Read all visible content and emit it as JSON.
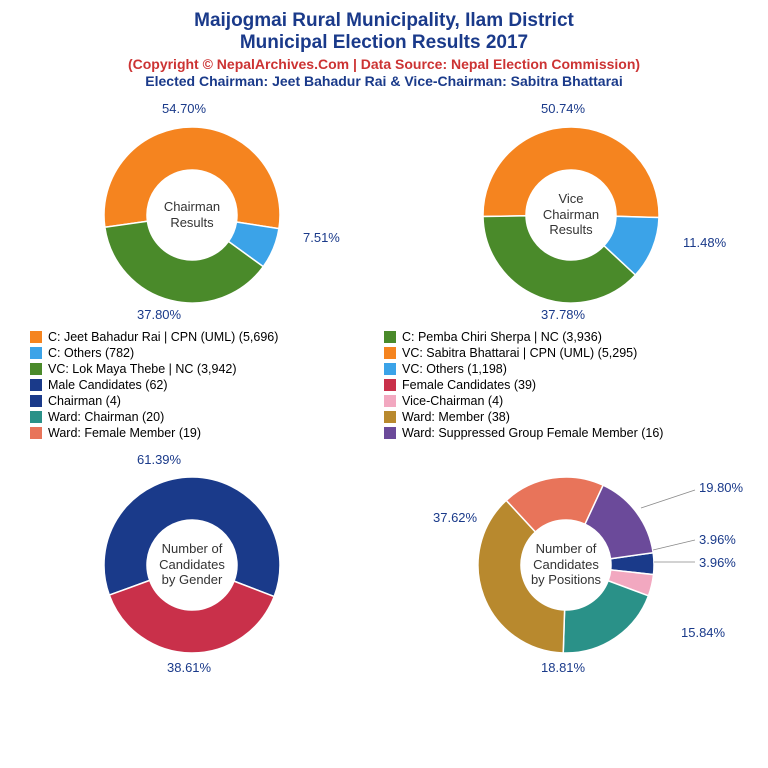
{
  "title": {
    "line1": "Maijogmai Rural Municipality, Ilam District",
    "line2": "Municipal Election Results 2017",
    "color": "#1a3a8a",
    "fontsize": 19
  },
  "subtitle": {
    "text": "(Copyright © NepalArchives.Com | Data Source: Nepal Election Commission)",
    "color": "#cc3333",
    "fontsize": 14
  },
  "elected": {
    "text": "Elected Chairman: Jeet Bahadur Rai & Vice-Chairman: Sabitra Bhattarai",
    "color": "#1a3a8a",
    "fontsize": 14
  },
  "label_color": "#1a3a8a",
  "charts": {
    "chairman": {
      "type": "donut",
      "center_label": "Chairman\nResults",
      "inner_radius": 45,
      "outer_radius": 88,
      "slices": [
        {
          "label": "54.70%",
          "value": 54.7,
          "color": "#f5841f"
        },
        {
          "label": "7.51%",
          "value": 7.51,
          "color": "#3ba3e8"
        },
        {
          "label": "37.80%",
          "value": 37.8,
          "color": "#4a8a2a"
        }
      ]
    },
    "vice_chairman": {
      "type": "donut",
      "center_label": "Vice\nChairman\nResults",
      "inner_radius": 45,
      "outer_radius": 88,
      "slices": [
        {
          "label": "50.74%",
          "value": 50.74,
          "color": "#f5841f"
        },
        {
          "label": "11.48%",
          "value": 11.48,
          "color": "#3ba3e8"
        },
        {
          "label": "37.78%",
          "value": 37.78,
          "color": "#4a8a2a"
        }
      ]
    },
    "gender": {
      "type": "donut",
      "center_label": "Number of\nCandidates\nby Gender",
      "inner_radius": 45,
      "outer_radius": 88,
      "slices": [
        {
          "label": "61.39%",
          "value": 61.39,
          "color": "#1a3a8a"
        },
        {
          "label": "38.61%",
          "value": 38.61,
          "color": "#c9304a"
        }
      ]
    },
    "positions": {
      "type": "donut",
      "center_label": "Number of\nCandidates\nby Positions",
      "inner_radius": 45,
      "outer_radius": 88,
      "slices": [
        {
          "label": "3.96%",
          "value": 3.96,
          "color": "#1a3a8a"
        },
        {
          "label": "3.96%",
          "value": 3.96,
          "color": "#f2a8c0"
        },
        {
          "label": "19.80%",
          "value": 19.8,
          "color": "#2a9188"
        },
        {
          "label": "37.62%",
          "value": 37.62,
          "color": "#b8892e"
        },
        {
          "label": "18.81%",
          "value": 18.81,
          "color": "#e8745a"
        },
        {
          "label": "15.84%",
          "value": 15.84,
          "color": "#6b4a9a"
        }
      ]
    }
  },
  "legend": {
    "font_size": 12.5,
    "items_left": [
      {
        "color": "#f5841f",
        "text": "C: Jeet Bahadur Rai | CPN (UML) (5,696)"
      },
      {
        "color": "#3ba3e8",
        "text": "C: Others (782)"
      },
      {
        "color": "#4a8a2a",
        "text": "VC: Lok Maya Thebe | NC (3,942)"
      },
      {
        "color": "#1a3a8a",
        "text": "Male Candidates (62)"
      },
      {
        "color": "#1a3a8a",
        "text": "Chairman (4)"
      },
      {
        "color": "#2a9188",
        "text": "Ward: Chairman (20)"
      },
      {
        "color": "#e8745a",
        "text": "Ward: Female Member (19)"
      }
    ],
    "items_right": [
      {
        "color": "#4a8a2a",
        "text": "C: Pemba Chiri Sherpa | NC (3,936)"
      },
      {
        "color": "#f5841f",
        "text": "VC: Sabitra Bhattarai | CPN (UML) (5,295)"
      },
      {
        "color": "#3ba3e8",
        "text": "VC: Others (1,198)"
      },
      {
        "color": "#c9304a",
        "text": "Female Candidates (39)"
      },
      {
        "color": "#f2a8c0",
        "text": "Vice-Chairman (4)"
      },
      {
        "color": "#b8892e",
        "text": "Ward: Member (38)"
      },
      {
        "color": "#6b4a9a",
        "text": "Ward: Suppressed Group Female Member (16)"
      }
    ]
  }
}
